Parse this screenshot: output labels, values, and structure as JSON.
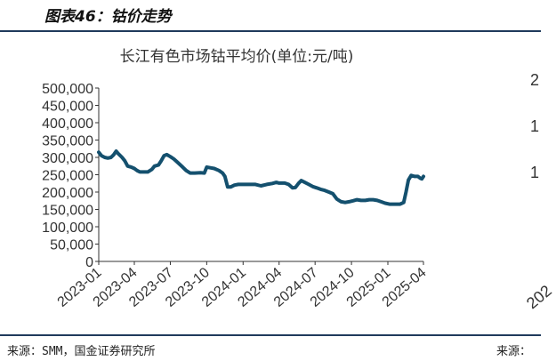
{
  "figure_title": "图表46：钴价走势",
  "source_left": "来源：SMM，国金证券研究所",
  "source_right": "来源：",
  "right_panel_peek": [
    "2",
    "1",
    "1",
    "202"
  ],
  "colors": {
    "line": "#14506e",
    "axis": "#333333",
    "rule": "#1f3a5c"
  },
  "chart_data": {
    "type": "line",
    "title": "长江有色市场钴平均价(单位:元/吨)",
    "xlabel": "",
    "ylabel": "",
    "ylim": [
      0,
      500000
    ],
    "yticks": [
      0,
      50000,
      100000,
      150000,
      200000,
      250000,
      300000,
      350000,
      400000,
      450000,
      500000
    ],
    "ytick_labels": [
      "0",
      "50,000",
      "100,000",
      "150,000",
      "200,000",
      "250,000",
      "300,000",
      "350,000",
      "400,000",
      "450,000",
      "500,000"
    ],
    "xlim": [
      "2023-01",
      "2025-04"
    ],
    "xtick_labels": [
      "2023-01",
      "2023-04",
      "2023-07",
      "2023-10",
      "2024-01",
      "2024-04",
      "2024-07",
      "2024-10",
      "2025-01",
      "2025-04"
    ],
    "grid": false,
    "series": [
      {
        "name": "",
        "points": [
          [
            "2023-01-01",
            315000
          ],
          [
            "2023-01-08",
            305000
          ],
          [
            "2023-01-16",
            300000
          ],
          [
            "2023-01-24",
            298000
          ],
          [
            "2023-02-01",
            300000
          ],
          [
            "2023-02-08",
            308000
          ],
          [
            "2023-02-14",
            318000
          ],
          [
            "2023-02-20",
            310000
          ],
          [
            "2023-03-01",
            300000
          ],
          [
            "2023-03-08",
            290000
          ],
          [
            "2023-03-15",
            275000
          ],
          [
            "2023-03-24",
            272000
          ],
          [
            "2023-04-01",
            268000
          ],
          [
            "2023-04-08",
            262000
          ],
          [
            "2023-04-15",
            258000
          ],
          [
            "2023-04-24",
            258000
          ],
          [
            "2023-05-05",
            258000
          ],
          [
            "2023-05-15",
            265000
          ],
          [
            "2023-05-22",
            275000
          ],
          [
            "2023-06-01",
            278000
          ],
          [
            "2023-06-08",
            290000
          ],
          [
            "2023-06-15",
            305000
          ],
          [
            "2023-06-22",
            308000
          ],
          [
            "2023-07-01",
            302000
          ],
          [
            "2023-07-10",
            295000
          ],
          [
            "2023-07-20",
            285000
          ],
          [
            "2023-08-01",
            272000
          ],
          [
            "2023-08-10",
            262000
          ],
          [
            "2023-08-20",
            255000
          ],
          [
            "2023-09-01",
            255000
          ],
          [
            "2023-09-15",
            256000
          ],
          [
            "2023-09-25",
            255000
          ],
          [
            "2023-10-01",
            272000
          ],
          [
            "2023-10-10",
            270000
          ],
          [
            "2023-10-20",
            268000
          ],
          [
            "2023-11-01",
            262000
          ],
          [
            "2023-11-10",
            255000
          ],
          [
            "2023-11-16",
            245000
          ],
          [
            "2023-11-23",
            215000
          ],
          [
            "2023-12-01",
            215000
          ],
          [
            "2023-12-10",
            220000
          ],
          [
            "2023-12-20",
            222000
          ],
          [
            "2024-01-01",
            222000
          ],
          [
            "2024-01-15",
            222000
          ],
          [
            "2024-02-01",
            222000
          ],
          [
            "2024-02-15",
            218000
          ],
          [
            "2024-03-01",
            222000
          ],
          [
            "2024-03-15",
            225000
          ],
          [
            "2024-03-25",
            228000
          ],
          [
            "2024-04-01",
            226000
          ],
          [
            "2024-04-15",
            226000
          ],
          [
            "2024-04-25",
            222000
          ],
          [
            "2024-05-05",
            212000
          ],
          [
            "2024-05-12",
            213000
          ],
          [
            "2024-05-20",
            225000
          ],
          [
            "2024-05-27",
            233000
          ],
          [
            "2024-06-05",
            228000
          ],
          [
            "2024-06-15",
            222000
          ],
          [
            "2024-06-25",
            216000
          ],
          [
            "2024-07-05",
            212000
          ],
          [
            "2024-07-15",
            208000
          ],
          [
            "2024-07-25",
            205000
          ],
          [
            "2024-08-05",
            200000
          ],
          [
            "2024-08-15",
            195000
          ],
          [
            "2024-08-25",
            180000
          ],
          [
            "2024-09-05",
            172000
          ],
          [
            "2024-09-15",
            170000
          ],
          [
            "2024-09-25",
            172000
          ],
          [
            "2024-10-05",
            175000
          ],
          [
            "2024-10-15",
            178000
          ],
          [
            "2024-10-25",
            176000
          ],
          [
            "2024-11-05",
            176000
          ],
          [
            "2024-11-15",
            178000
          ],
          [
            "2024-11-25",
            178000
          ],
          [
            "2024-12-05",
            176000
          ],
          [
            "2024-12-15",
            172000
          ],
          [
            "2024-12-25",
            168000
          ],
          [
            "2025-01-05",
            165000
          ],
          [
            "2025-01-15",
            165000
          ],
          [
            "2025-01-25",
            165000
          ],
          [
            "2025-02-01",
            165000
          ],
          [
            "2025-02-10",
            170000
          ],
          [
            "2025-02-16",
            200000
          ],
          [
            "2025-02-22",
            235000
          ],
          [
            "2025-03-01",
            248000
          ],
          [
            "2025-03-10",
            245000
          ],
          [
            "2025-03-18",
            245000
          ],
          [
            "2025-03-24",
            240000
          ],
          [
            "2025-03-28",
            238000
          ],
          [
            "2025-04-01",
            245000
          ]
        ]
      }
    ]
  }
}
